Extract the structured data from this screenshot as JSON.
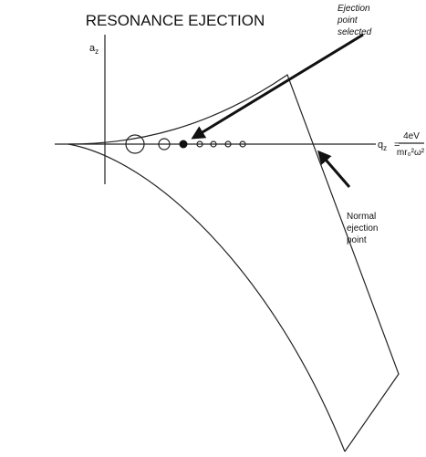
{
  "title": "RESONANCE EJECTION",
  "axes": {
    "y_label": {
      "main": "a",
      "sub": "z"
    },
    "x_label": {
      "main": "q",
      "sub": "z",
      "eq": "=",
      "numerator": "4eV",
      "denominator": "mr₀²ω²"
    }
  },
  "annotations": [
    {
      "lines": [
        "Ejection",
        "point",
        "selected"
      ]
    },
    {
      "lines": [
        "Normal",
        "ejection",
        "point"
      ]
    }
  ]
}
